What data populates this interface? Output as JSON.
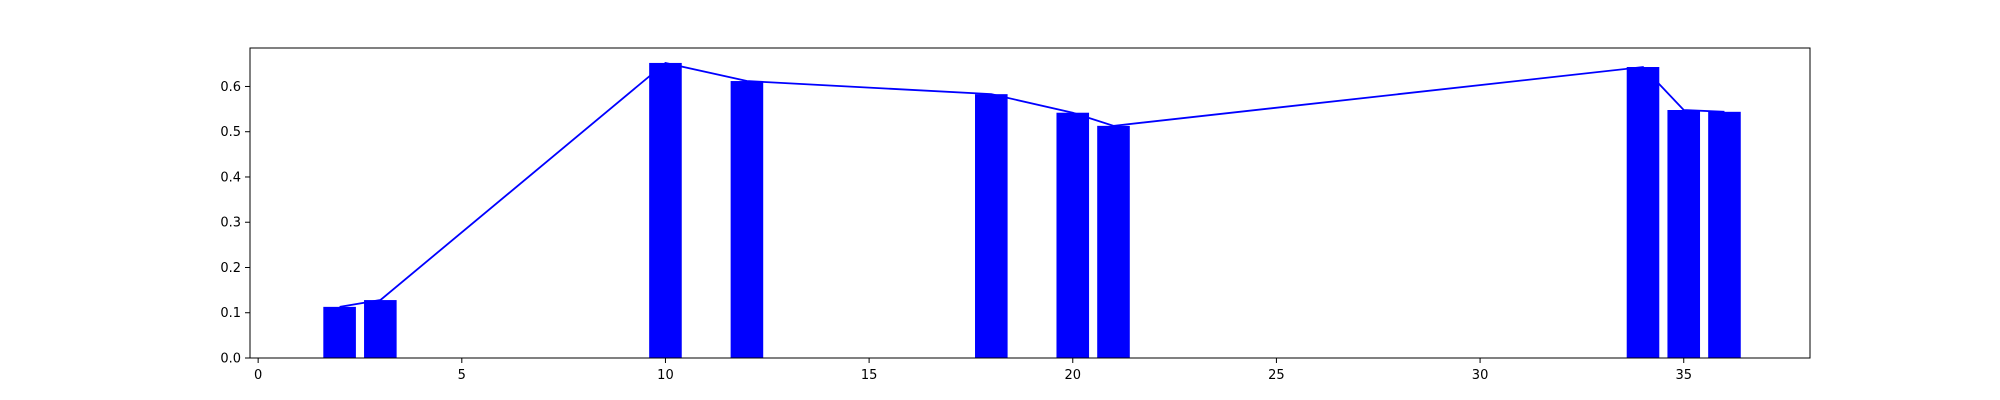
{
  "chart_data": {
    "type": "bar",
    "title": "",
    "xlabel": "",
    "ylabel": "",
    "xlim": [
      -0.2,
      38.1
    ],
    "ylim": [
      0.0,
      0.685
    ],
    "grid": false,
    "x_ticks": [
      0,
      5,
      10,
      15,
      20,
      25,
      30,
      35
    ],
    "y_ticks": [
      0.0,
      0.1,
      0.2,
      0.3,
      0.4,
      0.5,
      0.6
    ],
    "x_tick_labels": [
      "0",
      "5",
      "10",
      "15",
      "20",
      "25",
      "30",
      "35"
    ],
    "y_tick_labels": [
      "0.0",
      "0.1",
      "0.2",
      "0.3",
      "0.4",
      "0.5",
      "0.6"
    ],
    "bar_width": 0.8,
    "bar_color": "#0000ff",
    "line_color": "#0000ff",
    "points": [
      {
        "x": 2,
        "y": 0.113
      },
      {
        "x": 3,
        "y": 0.128
      },
      {
        "x": 10,
        "y": 0.652
      },
      {
        "x": 12,
        "y": 0.612
      },
      {
        "x": 18,
        "y": 0.583
      },
      {
        "x": 20,
        "y": 0.542
      },
      {
        "x": 21,
        "y": 0.513
      },
      {
        "x": 34,
        "y": 0.643
      },
      {
        "x": 35,
        "y": 0.548
      },
      {
        "x": 36,
        "y": 0.544
      }
    ]
  }
}
